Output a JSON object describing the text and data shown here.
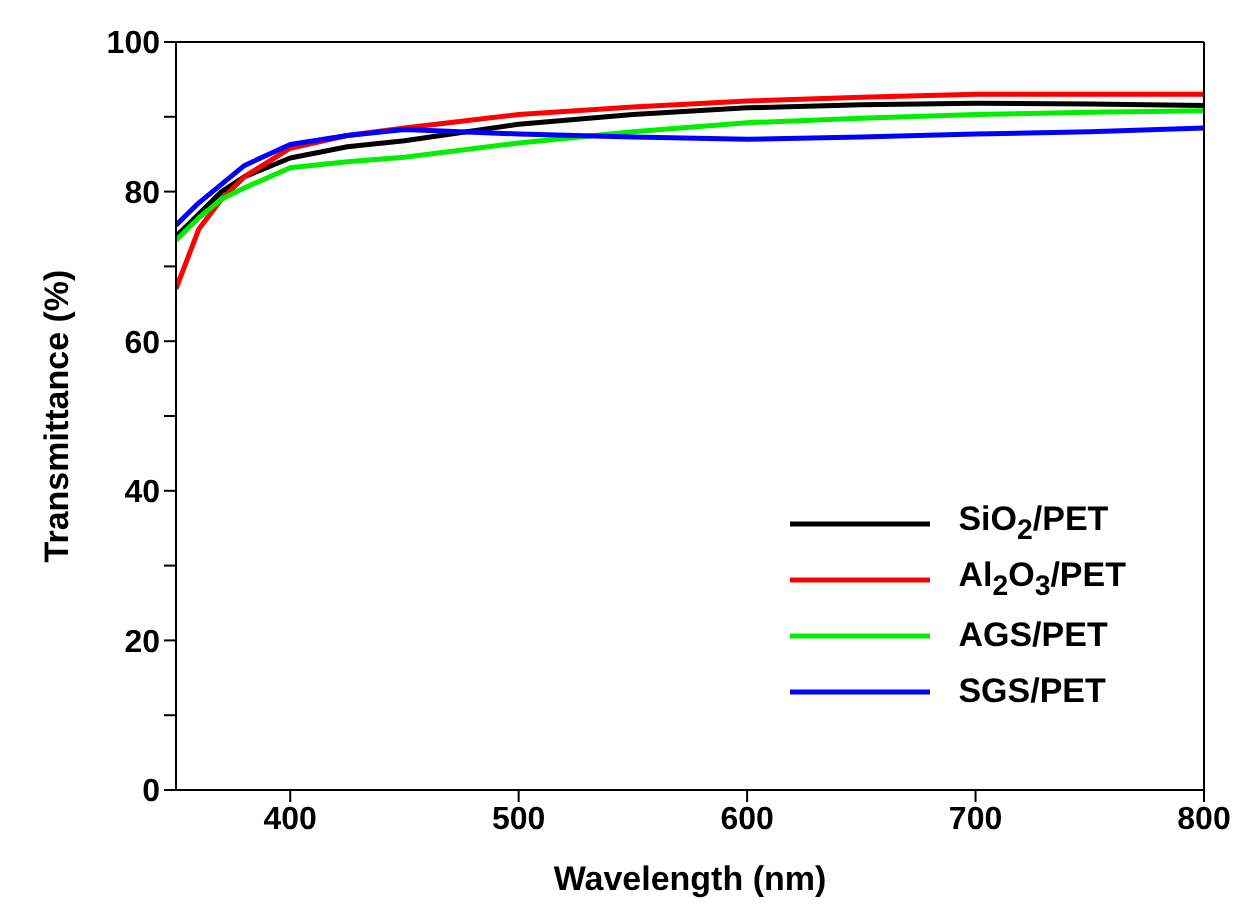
{
  "chart_data": {
    "type": "line",
    "xlabel": "Wavelength (nm)",
    "ylabel": "Transmittance (%)",
    "x": [
      350,
      360,
      370,
      380,
      400,
      425,
      450,
      500,
      550,
      600,
      650,
      700,
      750,
      800
    ],
    "series": [
      {
        "name": "SiO$_{2}$/PET",
        "color": "#000000",
        "values": [
          74,
          77,
          80,
          82,
          84.5,
          86,
          86.8,
          89,
          90.3,
          91.2,
          91.6,
          91.8,
          91.7,
          91.5
        ]
      },
      {
        "name": "Al$_{2}$O$_{3}$/PET",
        "color": "#ff0000",
        "values": [
          67,
          75,
          79,
          82,
          85.8,
          87.5,
          88.5,
          90.3,
          91.3,
          92.1,
          92.6,
          93,
          93,
          93
        ]
      },
      {
        "name": "AGS/PET",
        "color": "#00ee00",
        "values": [
          73.5,
          76.5,
          79,
          80.5,
          83.2,
          84,
          84.6,
          86.5,
          88,
          89.2,
          89.8,
          90.3,
          90.6,
          90.8
        ]
      },
      {
        "name": "SGS/PET",
        "color": "#0000ff",
        "values": [
          75.5,
          78.5,
          81,
          83.5,
          86.3,
          87.5,
          88.3,
          87.7,
          87.3,
          87,
          87.3,
          87.7,
          88,
          88.5
        ]
      }
    ],
    "xlim": [
      350,
      800
    ],
    "xticks": [
      400,
      500,
      600,
      700,
      800
    ],
    "ylim": [
      0,
      100
    ],
    "yticks": [
      0,
      {
        "value": 10,
        "label": null
      },
      20,
      {
        "value": 30,
        "label": null
      },
      40,
      {
        "value": 50,
        "label": null
      },
      60,
      {
        "value": 70,
        "label": null
      },
      80,
      {
        "value": 90,
        "label": null
      },
      100
    ],
    "grid": false,
    "legend": "bottom right",
    "marker": "none",
    "line_style": "solid"
  }
}
